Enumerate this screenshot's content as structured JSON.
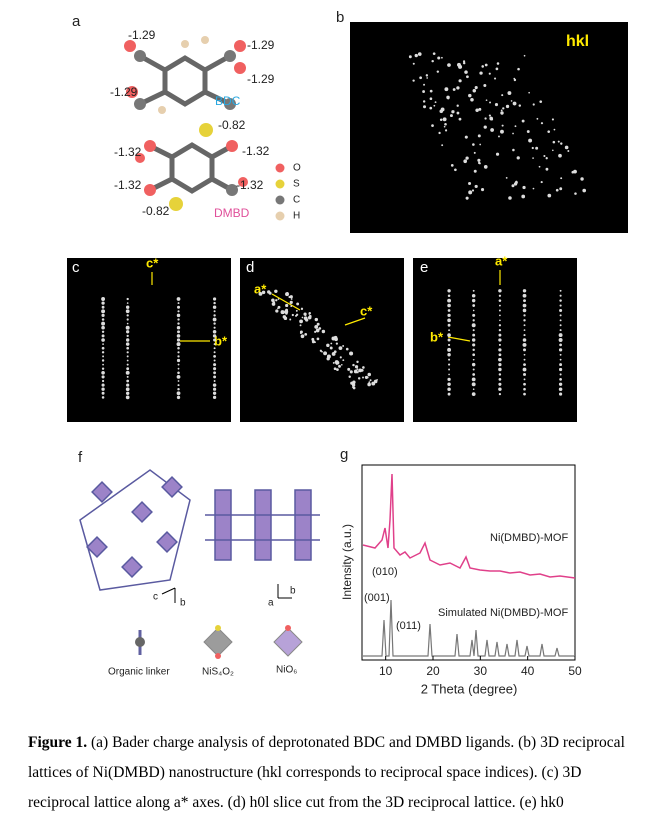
{
  "panels": {
    "a": {
      "label": "a",
      "bdc": {
        "name": "BDC",
        "charges": [
          "-1.29",
          "-1.29",
          "-1.29",
          "-1.29"
        ]
      },
      "dmbd": {
        "name": "DMBD",
        "charges": [
          "-0.82",
          "-1.32",
          "-1.32",
          "-1.32",
          "-1.32",
          "-0.82"
        ]
      },
      "legend": [
        "O",
        "S",
        "C",
        "H"
      ]
    },
    "b": {
      "label": "b",
      "text": "hkl"
    },
    "c": {
      "label": "c",
      "axes": [
        "c*",
        "b*"
      ]
    },
    "d": {
      "label": "d",
      "axes": [
        "a*",
        "c*"
      ]
    },
    "e": {
      "label": "e",
      "axes": [
        "a*",
        "b*"
      ]
    },
    "f": {
      "label": "f",
      "axes_left": [
        "c",
        "b"
      ],
      "axes_right": [
        "a",
        "b"
      ],
      "legend": [
        "Organic linker",
        "NiS₄O₂",
        "NiO₆"
      ]
    },
    "g": {
      "label": "g",
      "y_label": "Intensity (a.u.)",
      "x_label": "2 Theta (degree)",
      "xlim": [
        5,
        50
      ],
      "xticks": [
        10,
        20,
        30,
        40,
        50
      ],
      "series": [
        "Ni(DMBD)-MOF",
        "Simulated Ni(DMBD)-MOF"
      ],
      "peaks": [
        "(010)",
        "(001)",
        "(011)"
      ]
    }
  },
  "caption": {
    "lead": "Figure 1.",
    "text": "(a) Bader charge analysis of deprotonated BDC and DMBD ligands. (b) 3D reciprocal lattices of Ni(DMBD) nanostructure (hkl corresponds to reciprocal space indices). (c) 3D reciprocal lattice along a* axes. (d) h0l slice cut from the 3D reciprocal lattice. (e) hk0"
  }
}
